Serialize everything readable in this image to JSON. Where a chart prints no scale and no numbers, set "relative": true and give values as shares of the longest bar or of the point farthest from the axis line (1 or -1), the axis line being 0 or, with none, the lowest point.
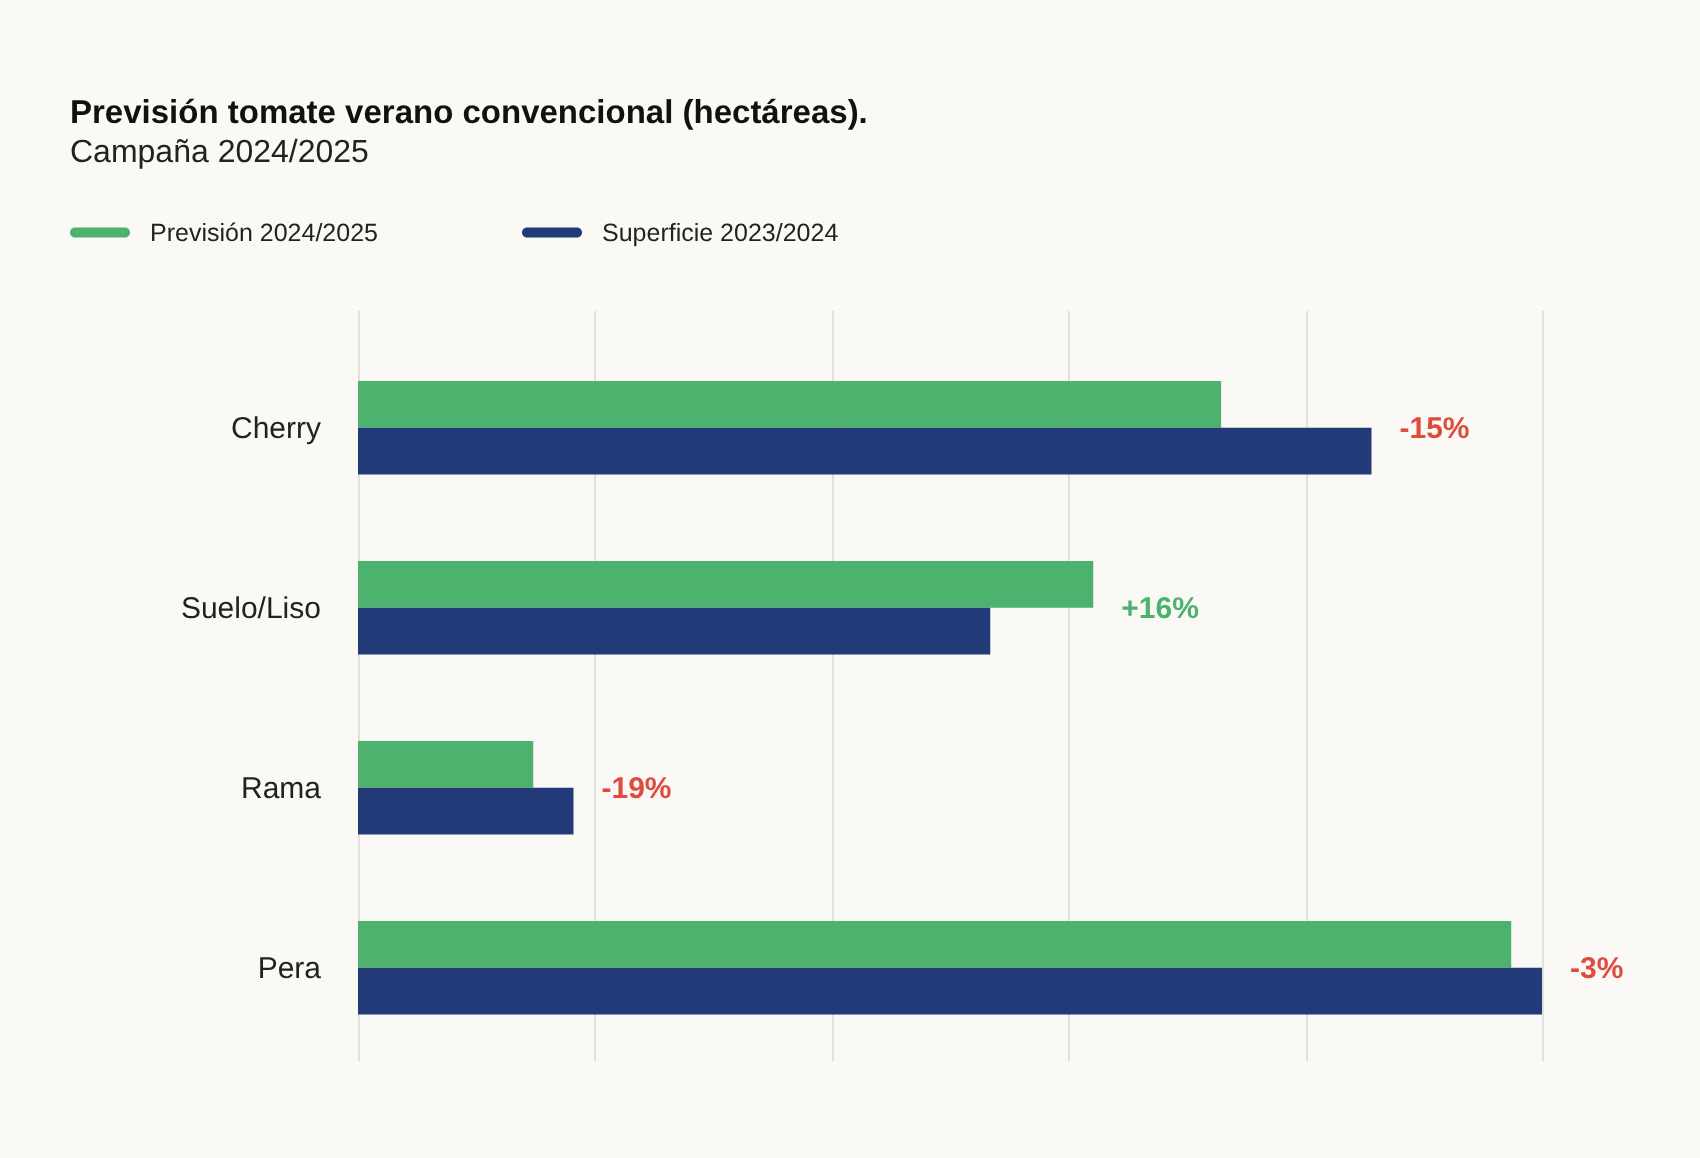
{
  "chart_data": {
    "type": "bar",
    "orientation": "horizontal",
    "relative": true,
    "title": "Previsión tomate verano convencional (hectáreas).",
    "subtitle": "Campaña 2024/2025",
    "categories": [
      "Cherry",
      "Suelo/Liso",
      "Rama",
      "Pera"
    ],
    "series": [
      {
        "name": "Previsión 2024/2025",
        "color": "#4cb26e",
        "values": [
          0.729,
          0.621,
          0.148,
          0.974
        ]
      },
      {
        "name": "Superficie 2023/2024",
        "color": "#223a77",
        "values": [
          0.856,
          0.534,
          0.182,
          1
        ]
      }
    ],
    "annotations": [
      {
        "text": "-15%",
        "x": 0.856,
        "y": "Cherry"
      },
      {
        "text": "+16%",
        "x": 0.621,
        "y": "Suelo/Liso"
      },
      {
        "text": "-19%",
        "x": 0.182,
        "y": "Rama"
      },
      {
        "text": "-3%",
        "x": 1,
        "y": "Pera"
      }
    ],
    "grid": "x",
    "legend": "top left"
  }
}
